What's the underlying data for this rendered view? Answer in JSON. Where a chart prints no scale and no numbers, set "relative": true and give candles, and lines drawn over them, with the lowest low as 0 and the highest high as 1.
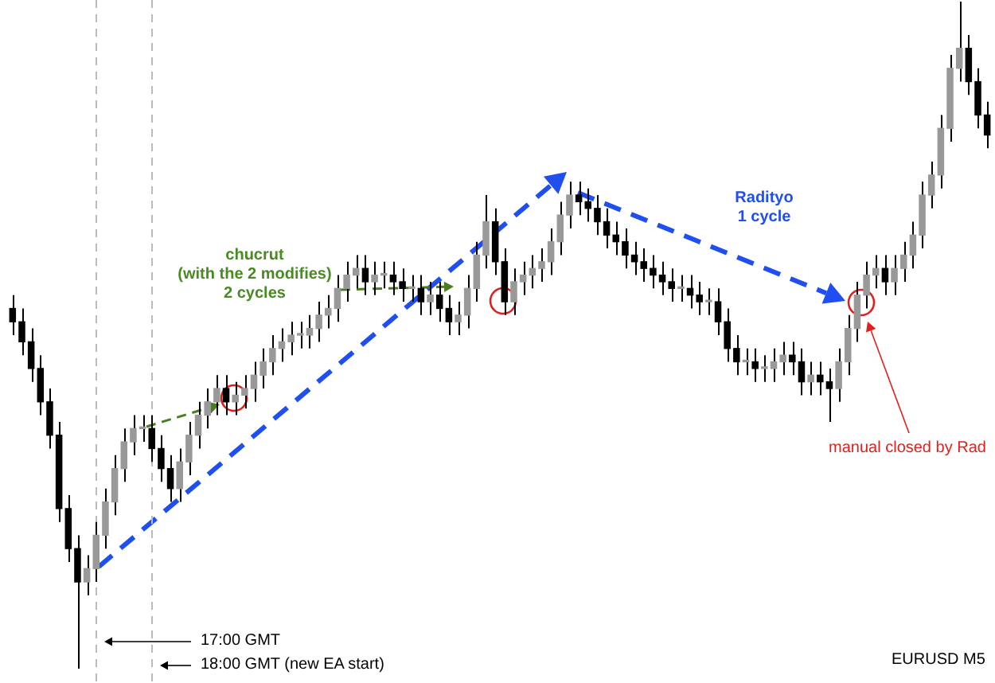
{
  "chart_data": {
    "type": "candlestick",
    "relative": true,
    "categories": [
      null,
      null,
      null,
      null,
      null,
      null,
      null,
      null,
      null,
      null,
      null,
      null,
      null,
      null,
      null,
      null,
      null,
      null,
      null,
      null,
      null,
      null,
      null,
      null,
      null,
      null,
      null,
      null,
      null,
      null,
      null,
      null,
      null,
      null,
      null,
      null,
      null,
      null,
      null,
      null,
      null,
      null,
      null,
      null,
      null,
      null,
      null,
      null,
      null,
      null,
      null,
      null,
      null,
      null,
      null,
      null,
      null,
      null,
      null,
      null,
      null,
      null,
      null,
      null,
      null,
      null,
      null,
      null,
      null,
      null,
      null,
      null,
      null,
      null,
      null,
      null,
      null,
      null,
      null,
      null,
      null,
      null,
      null,
      null,
      null,
      null,
      null,
      null,
      null,
      null,
      null,
      null,
      null,
      null,
      null,
      null,
      null,
      null,
      null,
      null,
      null,
      null,
      null,
      null,
      null,
      null
    ],
    "ohlc": [
      [
        0.54,
        0.56,
        0.5,
        0.52
      ],
      [
        0.52,
        0.54,
        0.47,
        0.49
      ],
      [
        0.49,
        0.51,
        0.43,
        0.45
      ],
      [
        0.45,
        0.47,
        0.38,
        0.4
      ],
      [
        0.4,
        0.42,
        0.33,
        0.35
      ],
      [
        0.35,
        0.37,
        0.22,
        0.24
      ],
      [
        0.24,
        0.26,
        0.16,
        0.18
      ],
      [
        0.18,
        0.2,
        0,
        0.13
      ],
      [
        0.13,
        0.17,
        0.11,
        0.15
      ],
      [
        0.15,
        0.22,
        0.13,
        0.2
      ],
      [
        0.2,
        0.27,
        0.18,
        0.25
      ],
      [
        0.25,
        0.32,
        0.23,
        0.3
      ],
      [
        0.3,
        0.36,
        0.28,
        0.34
      ],
      [
        0.34,
        0.38,
        0.32,
        0.36
      ],
      [
        0.36,
        0.38,
        0.34,
        0.36
      ],
      [
        0.36,
        0.38,
        0.31,
        0.33
      ],
      [
        0.33,
        0.35,
        0.28,
        0.3
      ],
      [
        0.3,
        0.32,
        0.25,
        0.27
      ],
      [
        0.27,
        0.33,
        0.25,
        0.31
      ],
      [
        0.31,
        0.37,
        0.29,
        0.35
      ],
      [
        0.35,
        0.4,
        0.33,
        0.38
      ],
      [
        0.38,
        0.42,
        0.36,
        0.4
      ],
      [
        0.4,
        0.44,
        0.38,
        0.42
      ],
      [
        0.42,
        0.44,
        0.38,
        0.4
      ],
      [
        0.4,
        0.43,
        0.38,
        0.41
      ],
      [
        0.41,
        0.44,
        0.39,
        0.42
      ],
      [
        0.42,
        0.46,
        0.4,
        0.44
      ],
      [
        0.44,
        0.48,
        0.42,
        0.46
      ],
      [
        0.46,
        0.5,
        0.44,
        0.48
      ],
      [
        0.48,
        0.51,
        0.46,
        0.49
      ],
      [
        0.49,
        0.52,
        0.47,
        0.5
      ],
      [
        0.5,
        0.52,
        0.48,
        0.5
      ],
      [
        0.5,
        0.53,
        0.48,
        0.51
      ],
      [
        0.51,
        0.55,
        0.49,
        0.53
      ],
      [
        0.53,
        0.56,
        0.51,
        0.54
      ],
      [
        0.54,
        0.59,
        0.52,
        0.57
      ],
      [
        0.57,
        0.61,
        0.55,
        0.59
      ],
      [
        0.59,
        0.62,
        0.57,
        0.6
      ],
      [
        0.6,
        0.62,
        0.56,
        0.58
      ],
      [
        0.58,
        0.61,
        0.56,
        0.59
      ],
      [
        0.59,
        0.61,
        0.57,
        0.59
      ],
      [
        0.59,
        0.61,
        0.56,
        0.58
      ],
      [
        0.58,
        0.6,
        0.55,
        0.57
      ],
      [
        0.57,
        0.59,
        0.55,
        0.57
      ],
      [
        0.57,
        0.59,
        0.53,
        0.55
      ],
      [
        0.55,
        0.58,
        0.53,
        0.56
      ],
      [
        0.56,
        0.58,
        0.52,
        0.54
      ],
      [
        0.54,
        0.56,
        0.5,
        0.52
      ],
      [
        0.52,
        0.55,
        0.5,
        0.53
      ],
      [
        0.53,
        0.59,
        0.51,
        0.57
      ],
      [
        0.57,
        0.64,
        0.55,
        0.62
      ],
      [
        0.62,
        0.71,
        0.6,
        0.67
      ],
      [
        0.67,
        0.69,
        0.59,
        0.61
      ],
      [
        0.61,
        0.63,
        0.53,
        0.55
      ],
      [
        0.55,
        0.6,
        0.53,
        0.58
      ],
      [
        0.58,
        0.61,
        0.56,
        0.59
      ],
      [
        0.59,
        0.62,
        0.57,
        0.6
      ],
      [
        0.6,
        0.63,
        0.58,
        0.61
      ],
      [
        0.61,
        0.66,
        0.59,
        0.64
      ],
      [
        0.64,
        0.7,
        0.62,
        0.68
      ],
      [
        0.68,
        0.73,
        0.66,
        0.71
      ],
      [
        0.71,
        0.73,
        0.68,
        0.7
      ],
      [
        0.7,
        0.72,
        0.67,
        0.69
      ],
      [
        0.69,
        0.71,
        0.65,
        0.67
      ],
      [
        0.67,
        0.69,
        0.63,
        0.65
      ],
      [
        0.65,
        0.67,
        0.62,
        0.64
      ],
      [
        0.64,
        0.66,
        0.6,
        0.62
      ],
      [
        0.62,
        0.64,
        0.59,
        0.61
      ],
      [
        0.61,
        0.63,
        0.58,
        0.6
      ],
      [
        0.6,
        0.62,
        0.57,
        0.59
      ],
      [
        0.59,
        0.61,
        0.56,
        0.58
      ],
      [
        0.58,
        0.6,
        0.55,
        0.57
      ],
      [
        0.57,
        0.59,
        0.55,
        0.57
      ],
      [
        0.57,
        0.59,
        0.54,
        0.56
      ],
      [
        0.56,
        0.58,
        0.53,
        0.55
      ],
      [
        0.55,
        0.57,
        0.53,
        0.55
      ],
      [
        0.55,
        0.57,
        0.5,
        0.52
      ],
      [
        0.52,
        0.54,
        0.46,
        0.48
      ],
      [
        0.48,
        0.5,
        0.44,
        0.46
      ],
      [
        0.46,
        0.48,
        0.44,
        0.46
      ],
      [
        0.46,
        0.48,
        0.43,
        0.45
      ],
      [
        0.45,
        0.47,
        0.43,
        0.45
      ],
      [
        0.45,
        0.48,
        0.43,
        0.46
      ],
      [
        0.46,
        0.49,
        0.44,
        0.47
      ],
      [
        0.47,
        0.49,
        0.44,
        0.46
      ],
      [
        0.46,
        0.48,
        0.41,
        0.43
      ],
      [
        0.43,
        0.46,
        0.41,
        0.44
      ],
      [
        0.44,
        0.46,
        0.41,
        0.43
      ],
      [
        0.43,
        0.45,
        0.37,
        0.42
      ],
      [
        0.42,
        0.48,
        0.4,
        0.46
      ],
      [
        0.46,
        0.53,
        0.44,
        0.51
      ],
      [
        0.51,
        0.58,
        0.49,
        0.56
      ],
      [
        0.56,
        0.61,
        0.54,
        0.59
      ],
      [
        0.59,
        0.62,
        0.57,
        0.6
      ],
      [
        0.6,
        0.62,
        0.56,
        0.58
      ],
      [
        0.58,
        0.62,
        0.56,
        0.6
      ],
      [
        0.6,
        0.64,
        0.58,
        0.62
      ],
      [
        0.62,
        0.67,
        0.6,
        0.65
      ],
      [
        0.65,
        0.73,
        0.63,
        0.71
      ],
      [
        0.71,
        0.76,
        0.69,
        0.74
      ],
      [
        0.74,
        0.83,
        0.72,
        0.81
      ],
      [
        0.81,
        0.92,
        0.79,
        0.9
      ],
      [
        0.9,
        1,
        0.88,
        0.93
      ],
      [
        0.93,
        0.95,
        0.86,
        0.88
      ],
      [
        0.88,
        0.9,
        0.81,
        0.83
      ],
      [
        0.83,
        0.85,
        0.78,
        0.8
      ]
    ],
    "annotations": [
      "chucrut\n(with the 2 modifies)\n2 cycles",
      "Radityo\n1 cycle",
      "manual closed by Rad",
      "EURUSD M5",
      "17:00 GMT",
      "18:00 GMT (new EA start)"
    ]
  }
}
